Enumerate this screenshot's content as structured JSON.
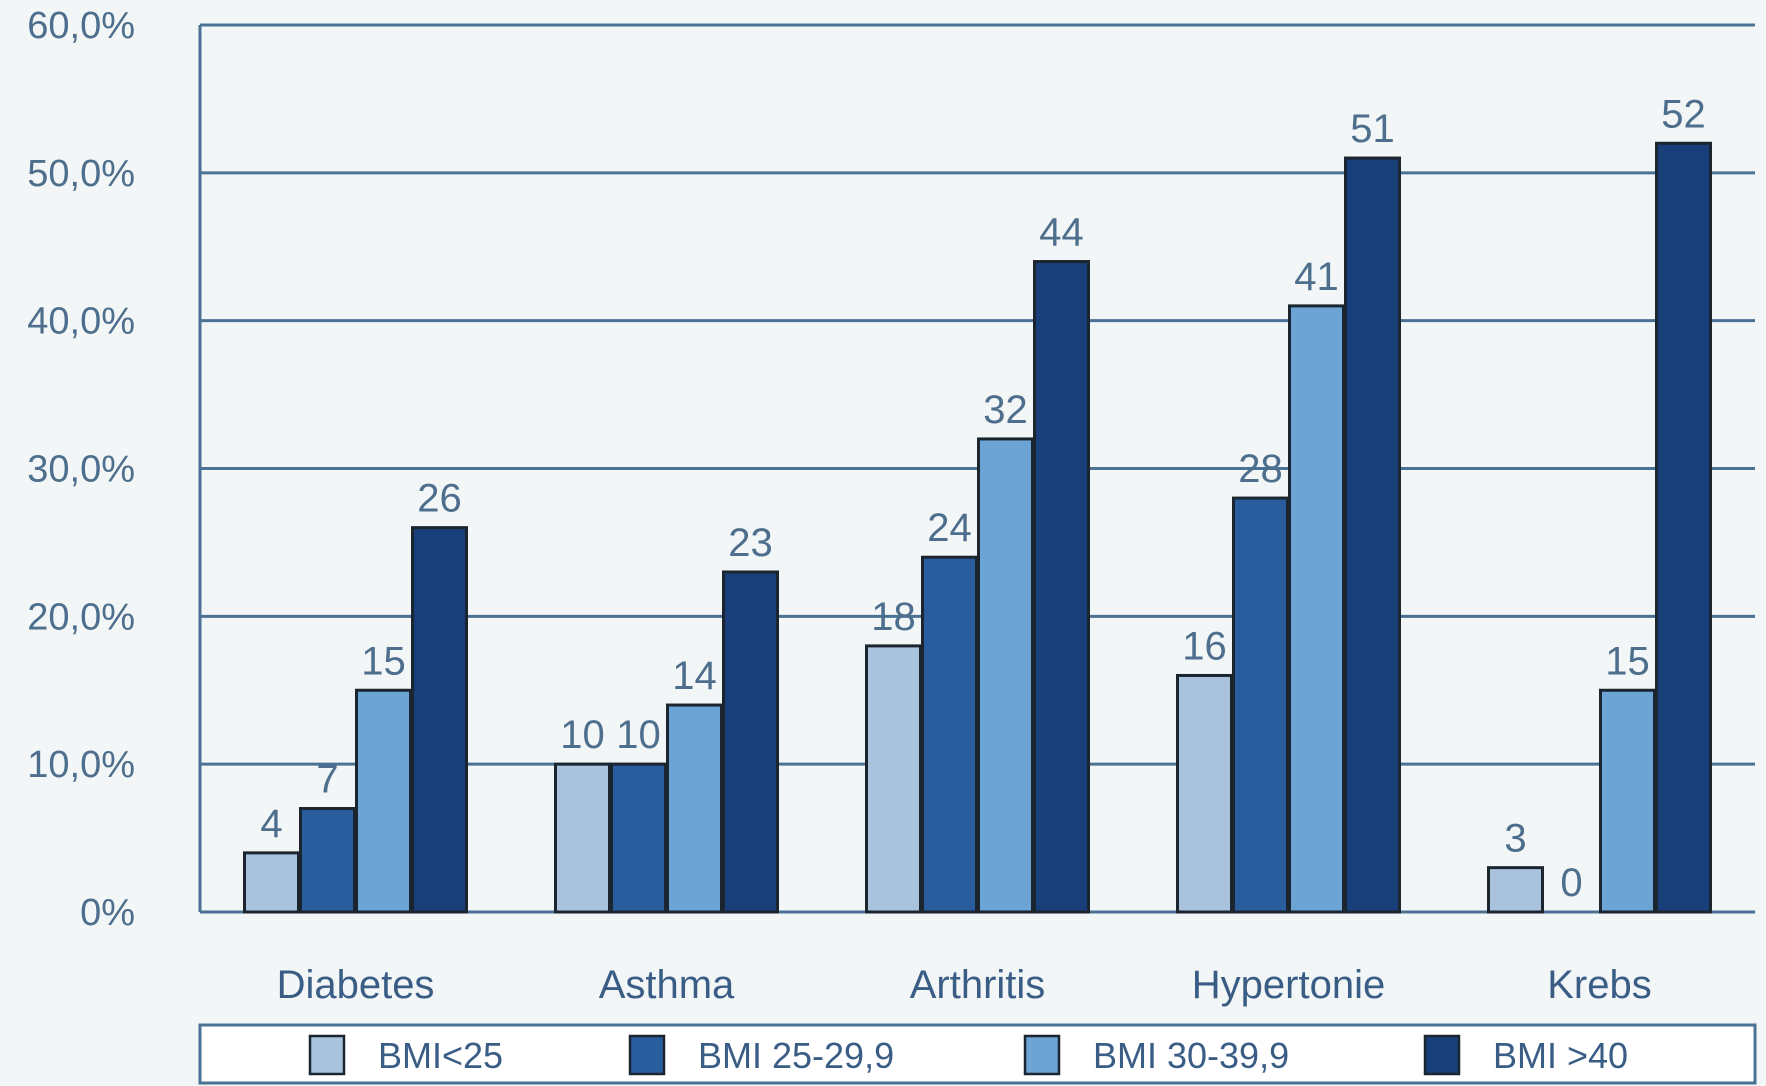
{
  "chart_data": {
    "type": "bar",
    "categories": [
      "Diabetes",
      "Asthma",
      "Arthritis",
      "Hypertonie",
      "Krebs"
    ],
    "series": [
      {
        "name": "BMI<25",
        "color": "#a9c3dd",
        "values": [
          4,
          10,
          18,
          16,
          3
        ]
      },
      {
        "name": "BMI 25-29,9",
        "color": "#2a5d9e",
        "values": [
          7,
          10,
          24,
          28,
          0
        ]
      },
      {
        "name": "BMI 30-39,9",
        "color": "#6da4d6",
        "values": [
          15,
          14,
          32,
          41,
          15
        ]
      },
      {
        "name": "BMI >40",
        "color": "#183f79",
        "values": [
          26,
          23,
          44,
          51,
          52
        ]
      }
    ],
    "ylim": [
      0,
      60
    ],
    "yticks": [
      0,
      10,
      20,
      30,
      40,
      50,
      60
    ],
    "ytick_labels": [
      "0%",
      "10,0%",
      "20,0%",
      "30,0%",
      "40,0%",
      "50,0%",
      "60,0%"
    ],
    "grid": true,
    "legend_position": "bottom",
    "title": "",
    "xlabel": "",
    "ylabel": ""
  },
  "colors": {
    "background": "#f3f6f6",
    "gridline": "#4a7294",
    "axis_text": "#4d6e8c",
    "category_text": "#3a5d86",
    "bar_outline": "#1b2530"
  }
}
